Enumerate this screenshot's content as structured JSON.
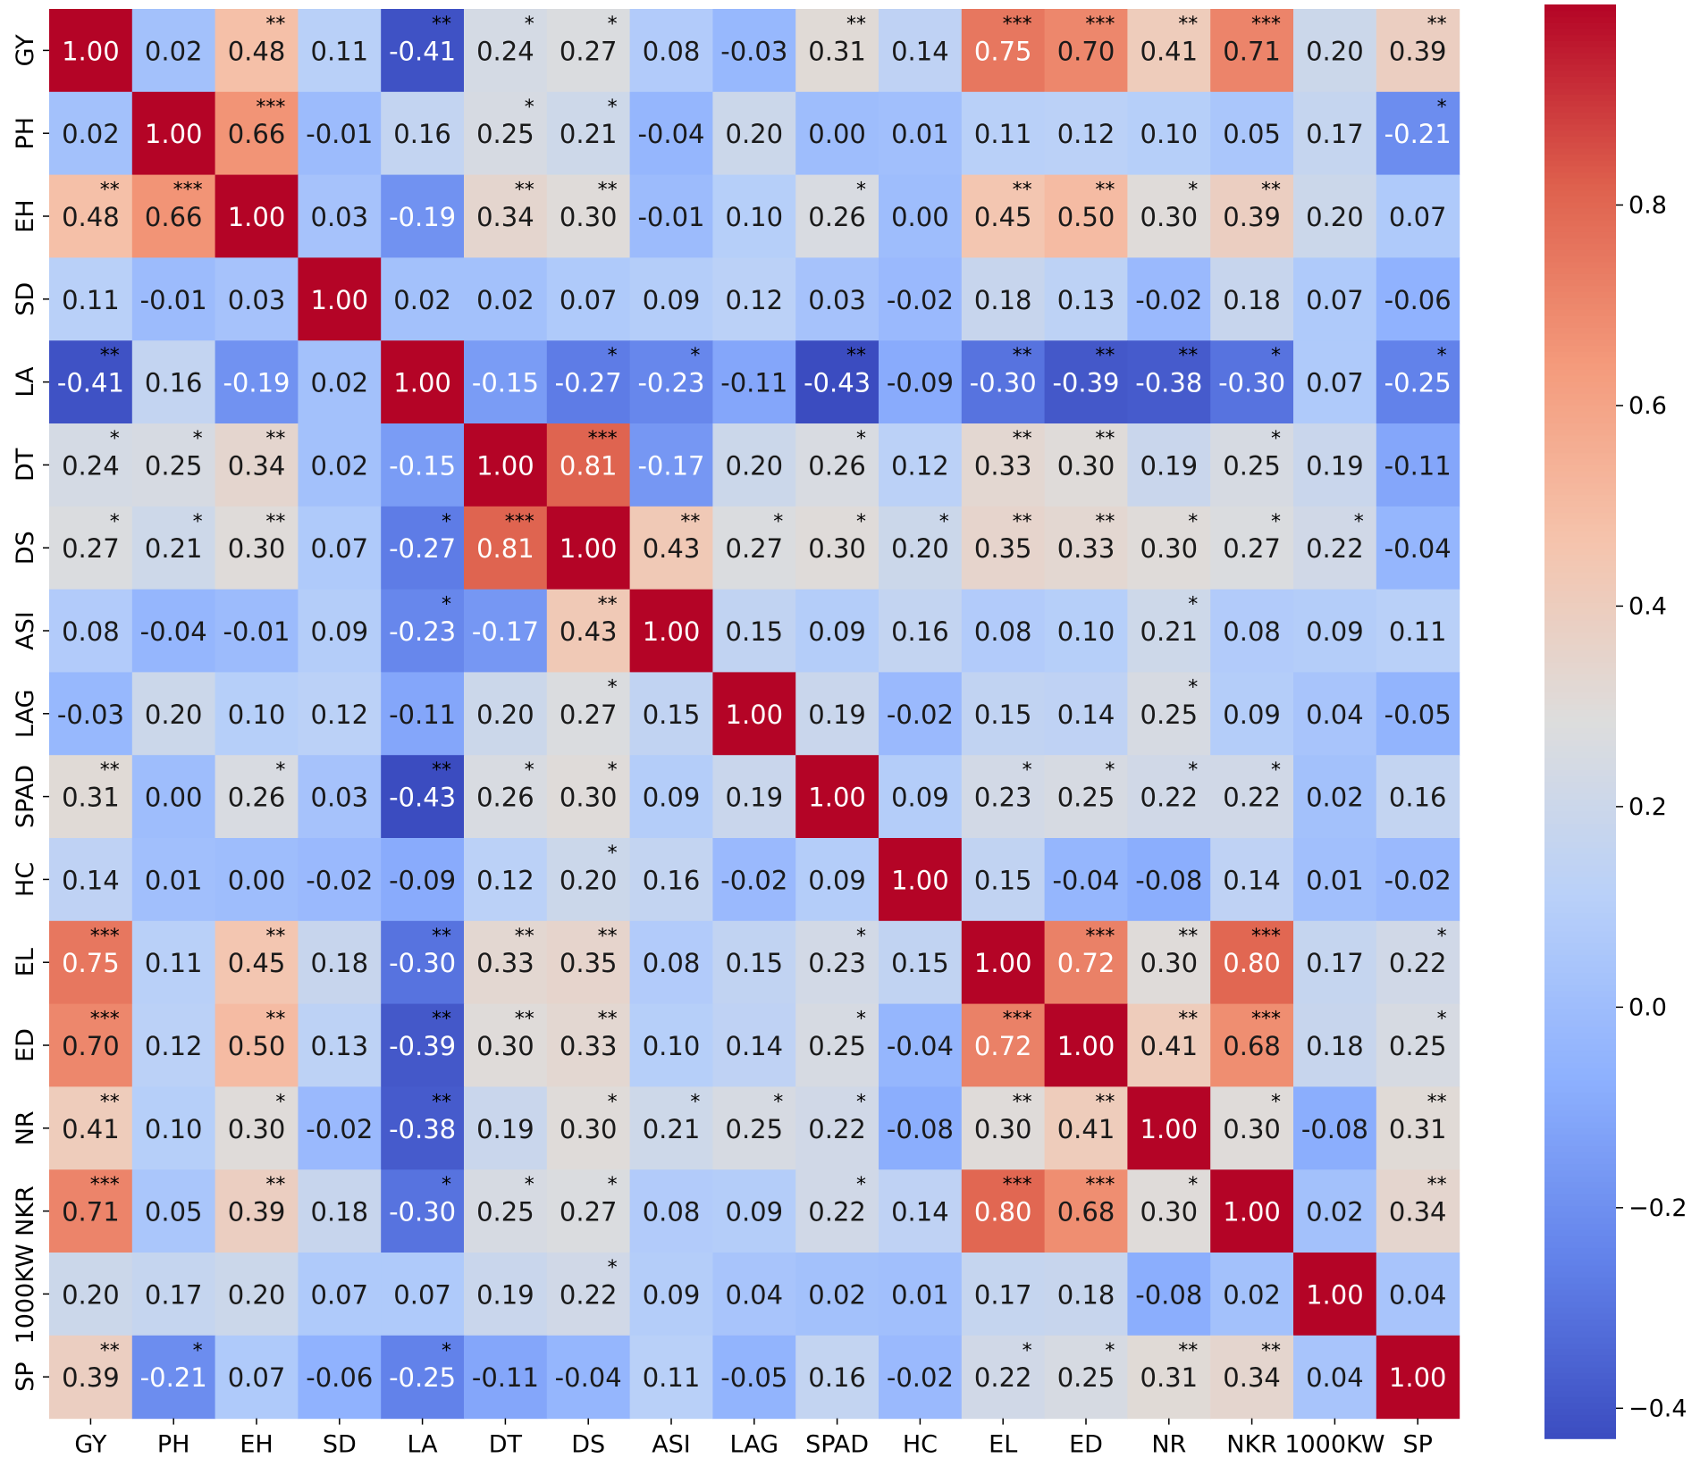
{
  "chart_data": {
    "type": "heatmap",
    "labels": [
      "GY",
      "PH",
      "EH",
      "SD",
      "LA",
      "DT",
      "DS",
      "ASI",
      "LAG",
      "SPAD",
      "HC",
      "EL",
      "ED",
      "NR",
      "NKR",
      "1000KW",
      "SP"
    ],
    "values": [
      [
        1.0,
        0.02,
        0.48,
        0.11,
        -0.41,
        0.24,
        0.27,
        0.08,
        -0.03,
        0.31,
        0.14,
        0.75,
        0.7,
        0.41,
        0.71,
        0.2,
        0.39
      ],
      [
        0.02,
        1.0,
        0.66,
        -0.01,
        0.16,
        0.25,
        0.21,
        -0.04,
        0.2,
        -0.0,
        0.01,
        0.11,
        0.12,
        0.1,
        0.05,
        0.17,
        -0.21
      ],
      [
        0.48,
        0.66,
        1.0,
        0.03,
        -0.19,
        0.34,
        0.3,
        -0.01,
        0.1,
        0.26,
        0.0,
        0.45,
        0.5,
        0.3,
        0.39,
        0.2,
        0.07
      ],
      [
        0.11,
        -0.01,
        0.03,
        1.0,
        0.02,
        0.02,
        0.07,
        0.09,
        0.12,
        0.03,
        -0.02,
        0.18,
        0.13,
        -0.02,
        0.18,
        0.07,
        -0.06
      ],
      [
        -0.41,
        0.16,
        -0.19,
        0.02,
        1.0,
        -0.15,
        -0.27,
        -0.23,
        -0.11,
        -0.43,
        -0.09,
        -0.3,
        -0.39,
        -0.38,
        -0.3,
        0.07,
        -0.25
      ],
      [
        0.24,
        0.25,
        0.34,
        0.02,
        -0.15,
        1.0,
        0.81,
        -0.17,
        0.2,
        0.26,
        0.12,
        0.33,
        0.3,
        0.19,
        0.25,
        0.19,
        -0.11
      ],
      [
        0.27,
        0.21,
        0.3,
        0.07,
        -0.27,
        0.81,
        1.0,
        0.43,
        0.27,
        0.3,
        0.2,
        0.35,
        0.33,
        0.3,
        0.27,
        0.22,
        -0.04
      ],
      [
        0.08,
        -0.04,
        -0.01,
        0.09,
        -0.23,
        -0.17,
        0.43,
        1.0,
        0.15,
        0.09,
        0.16,
        0.08,
        0.1,
        0.21,
        0.08,
        0.09,
        0.11
      ],
      [
        -0.03,
        0.2,
        0.1,
        0.12,
        -0.11,
        0.2,
        0.27,
        0.15,
        1.0,
        0.19,
        -0.02,
        0.15,
        0.14,
        0.25,
        0.09,
        0.04,
        -0.05
      ],
      [
        0.31,
        -0.0,
        0.26,
        0.03,
        -0.43,
        0.26,
        0.3,
        0.09,
        0.19,
        1.0,
        0.09,
        0.23,
        0.25,
        0.22,
        0.22,
        0.02,
        0.16
      ],
      [
        0.14,
        0.01,
        0.0,
        -0.02,
        -0.09,
        0.12,
        0.2,
        0.16,
        -0.02,
        0.09,
        1.0,
        0.15,
        -0.04,
        -0.08,
        0.14,
        0.01,
        -0.02
      ],
      [
        0.75,
        0.11,
        0.45,
        0.18,
        -0.3,
        0.33,
        0.35,
        0.08,
        0.15,
        0.23,
        0.15,
        1.0,
        0.72,
        0.3,
        0.8,
        0.17,
        0.22
      ],
      [
        0.7,
        0.12,
        0.5,
        0.13,
        -0.39,
        0.3,
        0.33,
        0.1,
        0.14,
        0.25,
        -0.04,
        0.72,
        1.0,
        0.41,
        0.68,
        0.18,
        0.25
      ],
      [
        0.41,
        0.1,
        0.3,
        -0.02,
        -0.38,
        0.19,
        0.3,
        0.21,
        0.25,
        0.22,
        -0.08,
        0.3,
        0.41,
        1.0,
        0.3,
        -0.08,
        0.31
      ],
      [
        0.71,
        0.05,
        0.39,
        0.18,
        -0.3,
        0.25,
        0.27,
        0.08,
        0.09,
        0.22,
        0.14,
        0.8,
        0.68,
        0.3,
        1.0,
        0.02,
        0.34
      ],
      [
        0.2,
        0.17,
        0.2,
        0.07,
        0.07,
        0.19,
        0.22,
        0.09,
        0.04,
        0.02,
        0.01,
        0.17,
        0.18,
        -0.08,
        0.02,
        1.0,
        0.04
      ],
      [
        0.39,
        -0.21,
        0.07,
        -0.06,
        -0.25,
        -0.11,
        -0.04,
        0.11,
        -0.05,
        0.16,
        -0.02,
        0.22,
        0.25,
        0.31,
        0.34,
        0.04,
        1.0
      ]
    ],
    "significance": [
      [
        "",
        "",
        "**",
        "",
        "**",
        "*",
        "*",
        "",
        "",
        "**",
        "",
        "***",
        "***",
        "**",
        "***",
        "",
        "**"
      ],
      [
        "",
        "",
        "***",
        "",
        "",
        "*",
        "*",
        "",
        "",
        "",
        "",
        "",
        "",
        "",
        "",
        "",
        "*"
      ],
      [
        "**",
        "***",
        "",
        "",
        "",
        "**",
        "**",
        "",
        "",
        "*",
        "",
        "**",
        "**",
        "*",
        "**",
        "",
        ""
      ],
      [
        "",
        "",
        "",
        "",
        "",
        "",
        "",
        "",
        "",
        "",
        "",
        "",
        "",
        "",
        "",
        "",
        ""
      ],
      [
        "**",
        "",
        "",
        "",
        "",
        "",
        "*",
        "*",
        "",
        "**",
        "",
        "**",
        "**",
        "**",
        "*",
        "",
        "*"
      ],
      [
        "*",
        "*",
        "**",
        "",
        "",
        "",
        "***",
        "",
        "",
        "*",
        "",
        "**",
        "**",
        "",
        "*",
        "",
        ""
      ],
      [
        "*",
        "*",
        "**",
        "",
        "*",
        "***",
        "",
        "**",
        "*",
        "*",
        "*",
        "**",
        "**",
        "*",
        "*",
        "*",
        ""
      ],
      [
        "",
        "",
        "",
        "",
        "*",
        "",
        "**",
        "",
        "",
        "",
        "",
        "",
        "",
        "*",
        "",
        "",
        ""
      ],
      [
        "",
        "",
        "",
        "",
        "",
        "",
        "*",
        "",
        "",
        "",
        "",
        "",
        "",
        "*",
        "",
        "",
        ""
      ],
      [
        "**",
        "",
        "*",
        "",
        "**",
        "*",
        "*",
        "",
        "",
        "",
        "",
        "*",
        "*",
        "*",
        "*",
        "",
        ""
      ],
      [
        "",
        "",
        "",
        "",
        "",
        "",
        "*",
        "",
        "",
        "",
        "",
        "",
        "",
        "",
        "",
        "",
        ""
      ],
      [
        "***",
        "",
        "**",
        "",
        "**",
        "**",
        "**",
        "",
        "",
        "*",
        "",
        "",
        "***",
        "**",
        "***",
        "",
        "*"
      ],
      [
        "***",
        "",
        "**",
        "",
        "**",
        "**",
        "**",
        "",
        "",
        "*",
        "",
        "***",
        "",
        "**",
        "***",
        "",
        "*"
      ],
      [
        "**",
        "",
        "*",
        "",
        "**",
        "",
        "*",
        "*",
        "*",
        "*",
        "",
        "**",
        "**",
        "",
        "*",
        "",
        "**"
      ],
      [
        "***",
        "",
        "**",
        "",
        "*",
        "*",
        "*",
        "",
        "",
        "*",
        "",
        "***",
        "***",
        "*",
        "",
        "",
        "**"
      ],
      [
        "",
        "",
        "",
        "",
        "",
        "",
        "*",
        "",
        "",
        "",
        "",
        "",
        "",
        "",
        "",
        "",
        ""
      ],
      [
        "**",
        "*",
        "",
        "",
        "*",
        "",
        "",
        "",
        "",
        "",
        "",
        "*",
        "*",
        "**",
        "**",
        "",
        ""
      ]
    ],
    "colormap": "coolwarm",
    "vmin": -0.43,
    "vmax": 1.0,
    "colorbar_ticks": [
      "−0.4",
      "−0.2",
      "0.0",
      "0.2",
      "0.4",
      "0.6",
      "0.8"
    ],
    "colorbar_tick_values": [
      -0.4,
      -0.2,
      0.0,
      0.2,
      0.4,
      0.6,
      0.8
    ],
    "title": "",
    "xlabel": "",
    "ylabel": ""
  }
}
